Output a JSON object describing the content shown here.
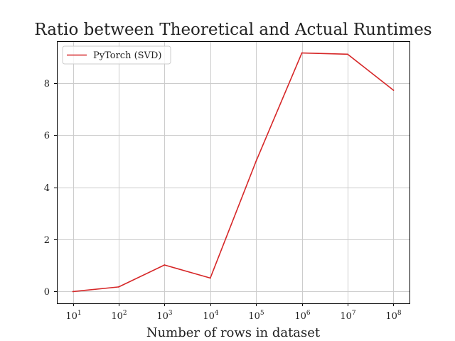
{
  "chart_data": {
    "type": "line",
    "title": "Ratio between Theoretical and Actual Runtimes",
    "xlabel": "Number of rows in dataset",
    "ylabel": "",
    "x_scale": "log",
    "x": [
      10,
      100,
      1000,
      10000,
      100000,
      1000000,
      10000000,
      100000000
    ],
    "x_tick_labels": [
      {
        "base": "10",
        "exp": "1"
      },
      {
        "base": "10",
        "exp": "2"
      },
      {
        "base": "10",
        "exp": "3"
      },
      {
        "base": "10",
        "exp": "4"
      },
      {
        "base": "10",
        "exp": "5"
      },
      {
        "base": "10",
        "exp": "6"
      },
      {
        "base": "10",
        "exp": "7"
      },
      {
        "base": "10",
        "exp": "8"
      }
    ],
    "y_ticks": [
      0,
      2,
      4,
      6,
      8
    ],
    "y_tick_labels": [
      "0",
      "2",
      "4",
      "6",
      "8"
    ],
    "ylim": [
      -0.45,
      9.6
    ],
    "grid": true,
    "legend_position": "top-left",
    "series": [
      {
        "name": "PyTorch (SVD)",
        "color": "#d62728",
        "values": [
          0.0,
          0.18,
          1.02,
          0.52,
          5.0,
          9.15,
          9.1,
          7.72
        ]
      }
    ]
  }
}
